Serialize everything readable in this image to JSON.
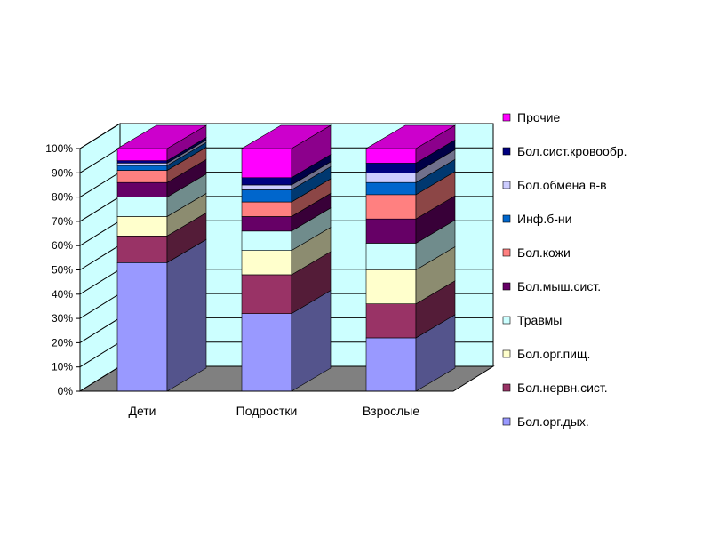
{
  "chart_data": {
    "type": "bar",
    "stacked": "percent",
    "three_d": true,
    "categories": [
      "Дети",
      "Подростки",
      "Взрослые"
    ],
    "series": [
      {
        "name": "Бол.орг.дых.",
        "color": "#9999ff",
        "values": [
          53,
          32,
          22
        ]
      },
      {
        "name": "Бол.нервн.сист.",
        "color": "#993366",
        "values": [
          11,
          16,
          14
        ]
      },
      {
        "name": "Бол.орг.пищ.",
        "color": "#ffffcc",
        "values": [
          8,
          10,
          14
        ]
      },
      {
        "name": "Травмы",
        "color": "#ccffff",
        "values": [
          8,
          8,
          11
        ]
      },
      {
        "name": "Бол.мыш.сист.",
        "color": "#660066",
        "values": [
          6,
          6,
          10
        ]
      },
      {
        "name": "Бол.кожи",
        "color": "#ff8080",
        "values": [
          5,
          6,
          10
        ]
      },
      {
        "name": "Инф.б-ни",
        "color": "#0066cc",
        "values": [
          2,
          5,
          5
        ]
      },
      {
        "name": "Бол.обмена в-в",
        "color": "#ccccff",
        "values": [
          1,
          2,
          4
        ]
      },
      {
        "name": "Бол.сист.кровообр.",
        "color": "#000080",
        "values": [
          1,
          3,
          4
        ]
      },
      {
        "name": "Прочие",
        "color": "#ff00ff",
        "values": [
          5,
          12,
          6
        ]
      }
    ],
    "yticks": [
      "0%",
      "10%",
      "20%",
      "30%",
      "40%",
      "50%",
      "60%",
      "70%",
      "80%",
      "90%",
      "100%"
    ],
    "ylim": [
      0,
      100
    ],
    "grid": true,
    "legend_position": "right",
    "wall_color": "#ccffff",
    "floor_color": "#808080"
  }
}
